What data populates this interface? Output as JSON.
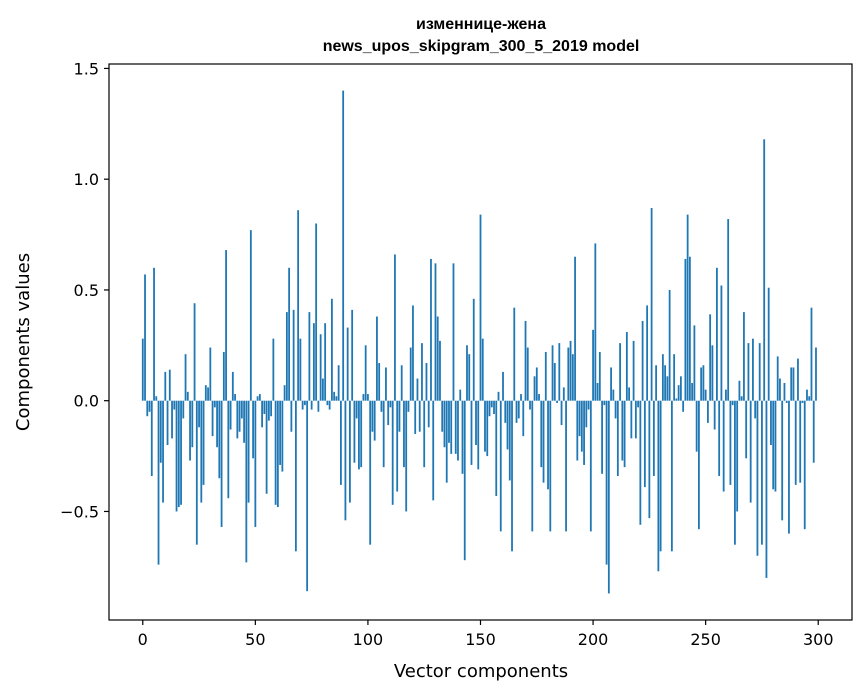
{
  "chart_data": {
    "type": "bar",
    "title": "изменнице-жена",
    "subtitle": "news_upos_skipgram_300_5_2019 model",
    "xlabel": "Vector components",
    "ylabel": "Components values",
    "xlim": [
      -15,
      315
    ],
    "ylim": [
      -0.99,
      1.52
    ],
    "x_ticks": [
      0,
      50,
      100,
      150,
      200,
      250,
      300
    ],
    "x_tick_labels": [
      "0",
      "50",
      "100",
      "150",
      "200",
      "250",
      "300"
    ],
    "y_ticks": [
      -0.5,
      0.0,
      0.5,
      1.0,
      1.5
    ],
    "y_tick_labels": [
      "−0.5",
      "0.0",
      "0.5",
      "1.0",
      "1.5"
    ],
    "grid": false,
    "bar_color": "#1f77b4",
    "x": [
      0,
      1,
      2,
      3,
      4,
      5,
      6,
      7,
      8,
      9,
      10,
      11,
      12,
      13,
      14,
      15,
      16,
      17,
      18,
      19,
      20,
      21,
      22,
      23,
      24,
      25,
      26,
      27,
      28,
      29,
      30,
      31,
      32,
      33,
      34,
      35,
      36,
      37,
      38,
      39,
      40,
      41,
      42,
      43,
      44,
      45,
      46,
      47,
      48,
      49,
      50,
      51,
      52,
      53,
      54,
      55,
      56,
      57,
      58,
      59,
      60,
      61,
      62,
      63,
      64,
      65,
      66,
      67,
      68,
      69,
      70,
      71,
      72,
      73,
      74,
      75,
      76,
      77,
      78,
      79,
      80,
      81,
      82,
      83,
      84,
      85,
      86,
      87,
      88,
      89,
      90,
      91,
      92,
      93,
      94,
      95,
      96,
      97,
      98,
      99,
      100,
      101,
      102,
      103,
      104,
      105,
      106,
      107,
      108,
      109,
      110,
      111,
      112,
      113,
      114,
      115,
      116,
      117,
      118,
      119,
      120,
      121,
      122,
      123,
      124,
      125,
      126,
      127,
      128,
      129,
      130,
      131,
      132,
      133,
      134,
      135,
      136,
      137,
      138,
      139,
      140,
      141,
      142,
      143,
      144,
      145,
      146,
      147,
      148,
      149,
      150,
      151,
      152,
      153,
      154,
      155,
      156,
      157,
      158,
      159,
      160,
      161,
      162,
      163,
      164,
      165,
      166,
      167,
      168,
      169,
      170,
      171,
      172,
      173,
      174,
      175,
      176,
      177,
      178,
      179,
      180,
      181,
      182,
      183,
      184,
      185,
      186,
      187,
      188,
      189,
      190,
      191,
      192,
      193,
      194,
      195,
      196,
      197,
      198,
      199,
      200,
      201,
      202,
      203,
      204,
      205,
      206,
      207,
      208,
      209,
      210,
      211,
      212,
      213,
      214,
      215,
      216,
      217,
      218,
      219,
      220,
      221,
      222,
      223,
      224,
      225,
      226,
      227,
      228,
      229,
      230,
      231,
      232,
      233,
      234,
      235,
      236,
      237,
      238,
      239,
      240,
      241,
      242,
      243,
      244,
      245,
      246,
      247,
      248,
      249,
      250,
      251,
      252,
      253,
      254,
      255,
      256,
      257,
      258,
      259,
      260,
      261,
      262,
      263,
      264,
      265,
      266,
      267,
      268,
      269,
      270,
      271,
      272,
      273,
      274,
      275,
      276,
      277,
      278,
      279,
      280,
      281,
      282,
      283,
      284,
      285,
      286,
      287,
      288,
      289,
      290,
      291,
      292,
      293,
      294,
      295,
      296,
      297,
      298,
      299
    ],
    "values": [
      0.28,
      0.57,
      -0.07,
      -0.05,
      -0.34,
      0.6,
      0.02,
      -0.74,
      -0.28,
      -0.46,
      0.13,
      -0.2,
      0.14,
      -0.17,
      -0.04,
      -0.5,
      -0.48,
      -0.47,
      -0.08,
      0.21,
      0.04,
      -0.27,
      -0.21,
      0.44,
      -0.65,
      -0.12,
      -0.46,
      -0.38,
      0.07,
      0.06,
      0.24,
      -0.16,
      -0.03,
      -0.21,
      -0.35,
      -0.57,
      0.22,
      0.68,
      -0.44,
      -0.13,
      0.13,
      0.03,
      -0.17,
      -0.14,
      -0.08,
      -0.19,
      -0.73,
      -0.46,
      0.77,
      -0.26,
      -0.57,
      0.02,
      0.03,
      -0.12,
      -0.06,
      -0.42,
      -0.09,
      -0.07,
      0.28,
      -0.47,
      -0.48,
      -0.29,
      -0.32,
      0.07,
      0.4,
      0.6,
      -0.14,
      0.41,
      -0.68,
      0.86,
      0.28,
      -0.04,
      -0.02,
      -0.86,
      0.4,
      -0.04,
      0.35,
      0.8,
      -0.05,
      0.3,
      0.1,
      0.35,
      -0.02,
      -0.04,
      0.46,
      0.04,
      0.02,
      0.16,
      -0.38,
      1.4,
      -0.54,
      0.33,
      -0.46,
      0.41,
      -0.28,
      -0.08,
      -0.31,
      -0.3,
      0.03,
      0.25,
      0.03,
      -0.65,
      -0.14,
      -0.18,
      0.38,
      0.17,
      -0.05,
      -0.3,
      0.15,
      -0.11,
      -0.03,
      -0.47,
      0.66,
      -0.41,
      -0.14,
      0.16,
      -0.3,
      -0.5,
      -0.05,
      0.24,
      0.43,
      -0.15,
      0.1,
      -0.14,
      0.26,
      -0.3,
      0.17,
      -0.12,
      0.64,
      -0.45,
      0.62,
      0.38,
      0.27,
      -0.14,
      -0.21,
      -0.37,
      -0.19,
      -0.24,
      0.62,
      -0.24,
      -0.27,
      0.05,
      -0.33,
      -0.72,
      0.25,
      0.21,
      -0.29,
      0.46,
      -0.2,
      -0.31,
      0.84,
      0.28,
      -0.23,
      -0.25,
      -0.07,
      -0.03,
      -0.06,
      -0.43,
      0.04,
      -0.59,
      0.13,
      -0.1,
      -0.22,
      -0.36,
      -0.68,
      0.42,
      -0.1,
      -0.08,
      0.03,
      -0.16,
      0.36,
      0.24,
      -0.04,
      -0.59,
      0.11,
      0.15,
      0.03,
      -0.3,
      -0.37,
      0.22,
      -0.4,
      -0.59,
      0.25,
      0.17,
      -0.01,
      0.26,
      -0.11,
      0.06,
      -0.59,
      0.24,
      0.27,
      0.21,
      0.65,
      -0.27,
      -0.16,
      -0.23,
      -0.29,
      -0.12,
      -0.04,
      -0.59,
      0.32,
      0.71,
      0.08,
      0.22,
      -0.33,
      -0.02,
      -0.74,
      -0.87,
      0.15,
      0.05,
      -0.08,
      -0.34,
      0.26,
      -0.27,
      -0.3,
      0.31,
      0.06,
      -0.17,
      0.27,
      -0.17,
      -0.03,
      -0.56,
      0.36,
      -0.39,
      0.43,
      -0.53,
      0.87,
      -0.34,
      0.16,
      -0.77,
      -0.68,
      0.21,
      0.16,
      0.11,
      0.5,
      -0.68,
      0.21,
      0.01,
      0.07,
      0.11,
      -0.05,
      0.64,
      0.84,
      0.65,
      0.08,
      0.34,
      -0.23,
      -0.58,
      0.15,
      0.16,
      0.05,
      -0.1,
      0.39,
      0.25,
      -0.13,
      0.6,
      -0.34,
      0.52,
      -0.41,
      0.05,
      0.82,
      -0.38,
      -0.02,
      -0.65,
      -0.5,
      0.09,
      0.02,
      0.4,
      -0.26,
      0.26,
      -0.46,
      0.28,
      -0.08,
      -0.7,
      0.26,
      -0.65,
      1.18,
      -0.8,
      0.51,
      -0.2,
      -0.4,
      -0.41,
      0.2,
      0.1,
      -0.54,
      0.08,
      -0.01,
      -0.6,
      0.15,
      0.15,
      -0.38,
      0.19,
      -0.37,
      -0.01,
      -0.58,
      0.05,
      0.02,
      0.42,
      -0.28,
      0.24
    ]
  }
}
